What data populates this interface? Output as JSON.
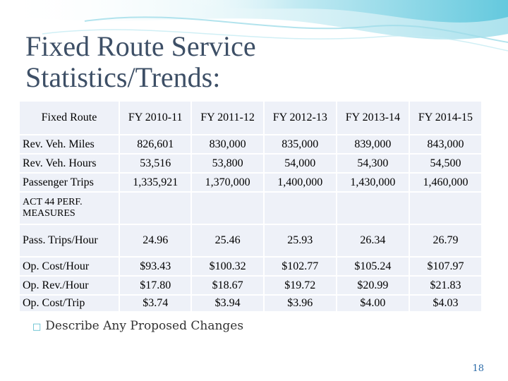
{
  "slide": {
    "title": "Fixed Route Service\nStatistics/Trends:",
    "behind_text": "Describe Any Proposed Changes",
    "page_number": "18"
  },
  "table": {
    "headers": [
      "Fixed Route",
      "FY 2010-11",
      "FY 2011-12",
      "FY 2012-13",
      "FY 2013-14",
      "FY 2014-15"
    ],
    "rows": [
      {
        "label": "Rev. Veh. Miles",
        "values": [
          "826,601",
          "830,000",
          "835,000",
          "839,000",
          "843,000"
        ]
      },
      {
        "label": "Rev. Veh. Hours",
        "values": [
          "53,516",
          "53,800",
          "54,000",
          "54,300",
          "54,500"
        ]
      },
      {
        "label": "Passenger Trips",
        "values": [
          "1,335,921",
          "1,370,000",
          "1,400,000",
          "1,430,000",
          "1,460,000"
        ]
      },
      {
        "label": "ACT 44 PERF. MEASURES",
        "values": [
          "",
          "",
          "",
          "",
          ""
        ]
      },
      {
        "label": "Pass. Trips/Hour",
        "values": [
          "24.96",
          "25.46",
          "25.93",
          "26.34",
          "26.79"
        ]
      },
      {
        "label": "Op. Cost/Hour",
        "values": [
          "$93.43",
          "$100.32",
          "$102.77",
          "$105.24",
          "$107.97"
        ]
      },
      {
        "label": "Op. Rev./Hour",
        "values": [
          "$17.80",
          "$18.67",
          "$19.72",
          "$20.99",
          "$21.83"
        ]
      },
      {
        "label": "Op. Cost/Trip",
        "values": [
          "$3.74",
          "$3.94",
          "$3.96",
          "$4.00",
          "$4.03"
        ]
      }
    ]
  }
}
